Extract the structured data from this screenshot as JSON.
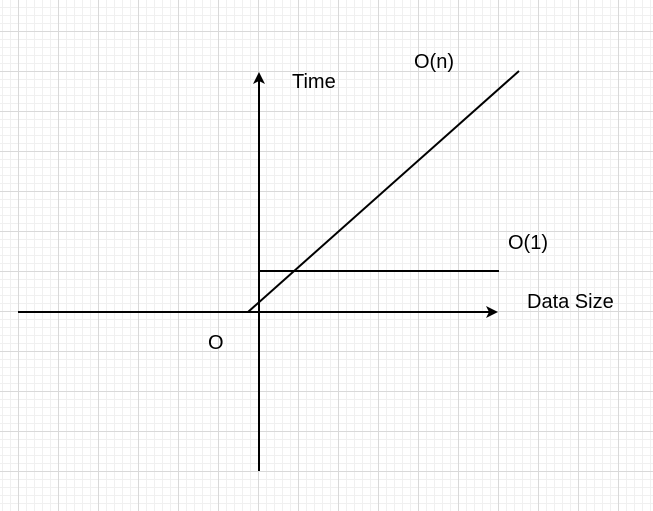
{
  "diagram": {
    "labels": {
      "y_axis": "Time",
      "x_axis": "Data Size",
      "origin": "O",
      "linear_curve": "O(n)",
      "constant_curve": "O(1)"
    },
    "colors": {
      "background": "#ffffff",
      "grid": "#d9d9d9",
      "stroke": "#000000"
    }
  }
}
